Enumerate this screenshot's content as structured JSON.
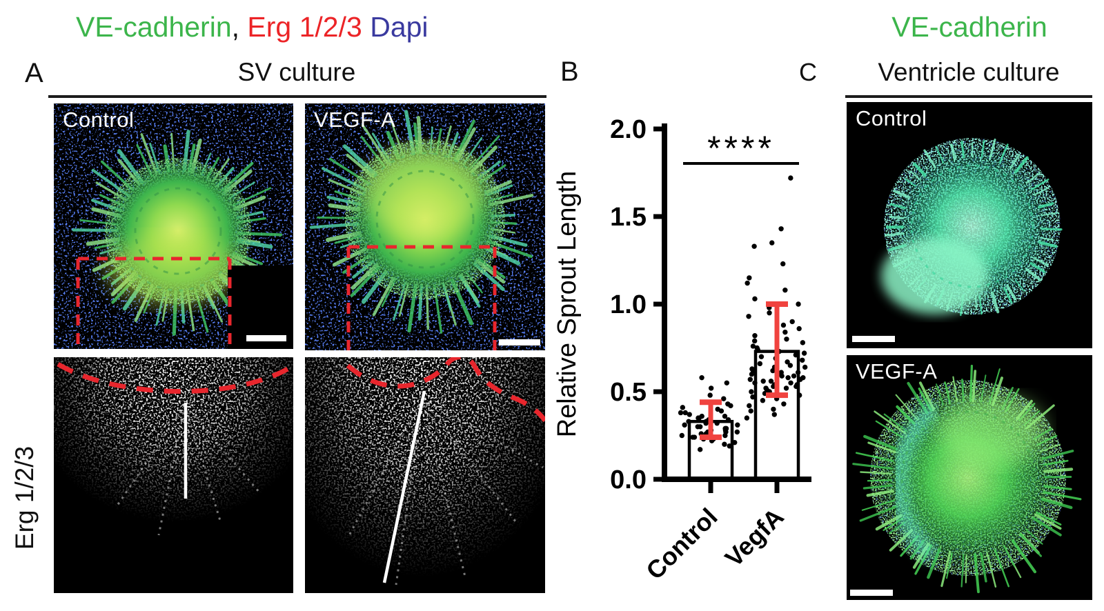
{
  "figure_title": {
    "ve_cadherin": "VE-cadherin",
    "separator": ", ",
    "erg": "Erg 1/2/3",
    "space": " ",
    "dapi": "Dapi",
    "colors": {
      "green": "#3cb54b",
      "red": "#ec2427",
      "blue": "#3a3a9f"
    }
  },
  "panel_a": {
    "label": "A",
    "title": "SV culture",
    "row_label": "Erg 1/2/3",
    "images": {
      "control": {
        "label": "Control"
      },
      "vegfa": {
        "label": "VEGF-A"
      }
    }
  },
  "panel_b": {
    "label": "B"
  },
  "chart_data": {
    "type": "bar",
    "title": "",
    "xlabel": "",
    "ylabel": "Relative Sprout Length",
    "ylim": [
      0.0,
      2.0
    ],
    "yticks": [
      0.0,
      0.5,
      1.0,
      1.5,
      2.0
    ],
    "grid": false,
    "legend": false,
    "categories": [
      "Control",
      "VegfA"
    ],
    "bar_means": [
      0.33,
      0.73
    ],
    "error_bars": [
      {
        "low": 0.24,
        "high": 0.44
      },
      {
        "low": 0.48,
        "high": 1.0
      }
    ],
    "significance": "****",
    "bar_fill": "#ffffff",
    "bar_outline": "#000000",
    "error_color": "#f0433f",
    "point_color": "#000000",
    "points": {
      "Control": [
        0.17,
        0.19,
        0.2,
        0.21,
        0.22,
        0.23,
        0.23,
        0.24,
        0.24,
        0.25,
        0.25,
        0.26,
        0.26,
        0.27,
        0.27,
        0.27,
        0.28,
        0.28,
        0.29,
        0.29,
        0.3,
        0.3,
        0.31,
        0.31,
        0.32,
        0.32,
        0.33,
        0.33,
        0.34,
        0.34,
        0.35,
        0.35,
        0.36,
        0.36,
        0.37,
        0.38,
        0.38,
        0.39,
        0.4,
        0.41,
        0.42,
        0.43,
        0.44,
        0.46,
        0.48,
        0.52,
        0.55,
        0.58
      ],
      "VegfA": [
        0.35,
        0.37,
        0.39,
        0.4,
        0.42,
        0.43,
        0.45,
        0.46,
        0.47,
        0.48,
        0.49,
        0.5,
        0.5,
        0.51,
        0.52,
        0.52,
        0.53,
        0.53,
        0.54,
        0.54,
        0.55,
        0.55,
        0.56,
        0.56,
        0.57,
        0.57,
        0.58,
        0.58,
        0.59,
        0.59,
        0.6,
        0.6,
        0.61,
        0.61,
        0.62,
        0.62,
        0.63,
        0.64,
        0.64,
        0.65,
        0.66,
        0.67,
        0.68,
        0.69,
        0.7,
        0.71,
        0.72,
        0.73,
        0.74,
        0.75,
        0.76,
        0.78,
        0.79,
        0.8,
        0.82,
        0.84,
        0.86,
        0.88,
        0.9,
        0.93,
        0.95,
        0.98,
        1.0,
        1.03,
        1.08,
        1.12,
        1.15,
        1.23,
        1.33,
        1.35,
        1.43,
        1.72
      ]
    }
  },
  "panel_c": {
    "label": "C",
    "stain_title": "VE-cadherin",
    "title": "Ventricle culture",
    "images": {
      "control": {
        "label": "Control"
      },
      "vegfa": {
        "label": "VEGF-A"
      }
    }
  }
}
